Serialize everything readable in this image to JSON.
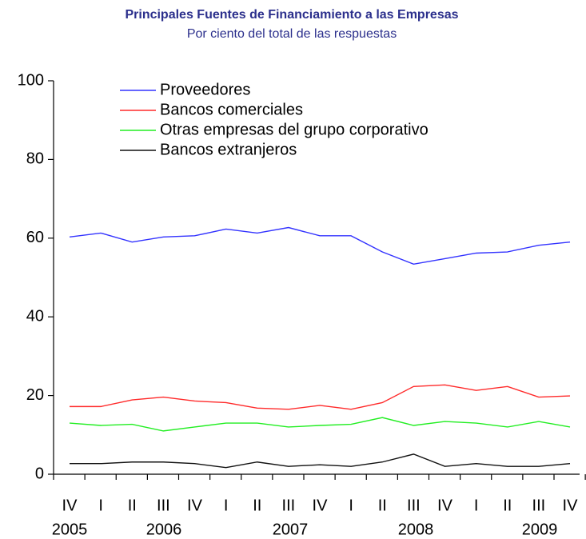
{
  "chart_data": {
    "type": "line",
    "title": "Principales Fuentes de Financiamiento a las Empresas",
    "subtitle": "Por ciento del total de las respuestas",
    "categories": [
      "IV",
      "I",
      "II",
      "III",
      "IV",
      "I",
      "II",
      "III",
      "IV",
      "I",
      "II",
      "III",
      "IV",
      "I",
      "II",
      "III",
      "IV"
    ],
    "year_labels": [
      "2005",
      "2006",
      "2007",
      "2008",
      "2009"
    ],
    "series": [
      {
        "name": "Proveedores",
        "color": "#3333ff",
        "values": [
          60.3,
          61.3,
          59,
          60.3,
          60.6,
          62.3,
          61.3,
          62.7,
          60.6,
          60.6,
          56.5,
          53.4,
          54.8,
          56.2,
          56.5,
          58.2,
          59
        ]
      },
      {
        "name": "Bancos comerciales",
        "color": "#ff2a2a",
        "values": [
          17.2,
          17.2,
          18.9,
          19.6,
          18.6,
          18.2,
          16.8,
          16.5,
          17.5,
          16.5,
          18.2,
          22.3,
          22.7,
          21.3,
          22.3,
          19.6,
          19.9
        ]
      },
      {
        "name": "Otras empresas del grupo corporativo",
        "color": "#22ee22",
        "values": [
          13,
          12.4,
          12.7,
          11,
          12,
          13,
          13,
          12,
          12.4,
          12.7,
          14.4,
          12.4,
          13.4,
          13,
          12,
          13.4,
          12
        ]
      },
      {
        "name": "Bancos extranjeros",
        "color": "#111111",
        "values": [
          2.7,
          2.7,
          3.1,
          3.1,
          2.7,
          1.7,
          3.1,
          2,
          2.4,
          2,
          3.1,
          5.1,
          2,
          2.7,
          2,
          2,
          2.7
        ]
      }
    ],
    "ylim": [
      0,
      100
    ],
    "yticks": [
      0,
      20,
      40,
      60,
      80,
      100
    ],
    "grid": false,
    "legend": "upper left"
  }
}
